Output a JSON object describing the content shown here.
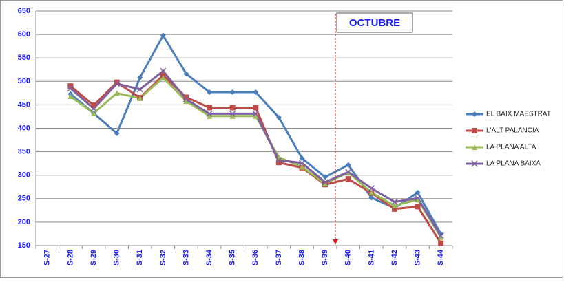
{
  "chart_data": {
    "type": "line",
    "categories": [
      "S-27",
      "S-28",
      "S-29",
      "S-30",
      "S-31",
      "S-32",
      "S-33",
      "S-34",
      "S-35",
      "S-36",
      "S-37",
      "S-38",
      "S-39",
      "S-40",
      "S-41",
      "S-42",
      "S-43",
      "S-44"
    ],
    "series": [
      {
        "name": "EL BAIX MAESTRAT",
        "color": "#4a7ebb",
        "marker": "diamond",
        "values": [
          null,
          473,
          432,
          389,
          508,
          598,
          516,
          477,
          477,
          477,
          423,
          336,
          296,
          322,
          252,
          230,
          263,
          175
        ]
      },
      {
        "name": "L'ALT PALANCIA",
        "color": "#be4b48",
        "marker": "square",
        "values": [
          null,
          490,
          449,
          498,
          465,
          513,
          466,
          444,
          444,
          444,
          327,
          316,
          280,
          292,
          262,
          228,
          233,
          155
        ]
      },
      {
        "name": "LA PLANA ALTA",
        "color": "#98b954",
        "marker": "triangle",
        "values": [
          null,
          468,
          432,
          475,
          464,
          508,
          458,
          426,
          426,
          426,
          338,
          318,
          282,
          306,
          263,
          235,
          248,
          168
        ]
      },
      {
        "name": "LA PLANA BAIXA",
        "color": "#7d60a0",
        "marker": "x",
        "values": [
          null,
          485,
          442,
          495,
          483,
          522,
          462,
          431,
          431,
          431,
          332,
          326,
          285,
          307,
          272,
          243,
          251,
          171
        ]
      }
    ],
    "annotation": "OCTUBRE",
    "ylim": [
      150,
      650
    ],
    "yticks": [
      150,
      200,
      250,
      300,
      350,
      400,
      450,
      500,
      550,
      600,
      650
    ],
    "grid": true,
    "legend": "right"
  }
}
